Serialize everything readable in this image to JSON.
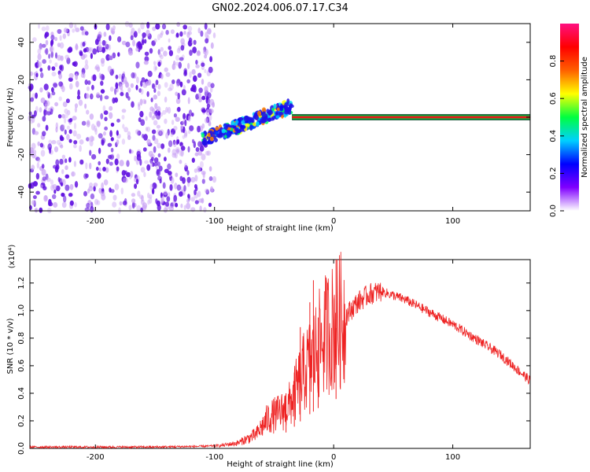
{
  "figure": {
    "title": "GN02.2024.006.07.17.C34"
  },
  "colors": {
    "snr_line": "#ee2222",
    "cluster": "#6010e0",
    "cluster_light": "#c8a0f4",
    "signal_band": "#e81818",
    "signal_band_edge": "#00cc44"
  },
  "chart_data": [
    {
      "type": "heatmap",
      "title": "GN02.2024.006.07.17.C34",
      "xlabel": "Height of straight line (km)",
      "ylabel": "Frequency (Hz)",
      "xlim": [
        -255,
        165
      ],
      "ylim": [
        -50,
        50
      ],
      "x_ticks": [
        -200,
        -100,
        0,
        100
      ],
      "y_ticks": [
        -40,
        -20,
        0,
        20,
        40
      ],
      "grid": false,
      "colorbar": {
        "label": "Normalized spectral amplitude",
        "range": [
          0.0,
          1.0
        ],
        "ticks": [
          "0.0",
          "0.2",
          "0.4",
          "0.6",
          "0.8"
        ],
        "colormap": [
          "#ffffff",
          "#8000ff",
          "#0000ff",
          "#00d0ff",
          "#00ff40",
          "#ffff00",
          "#ff6000",
          "#ff0000",
          "#ff1080"
        ]
      },
      "regions": [
        {
          "name": "noise",
          "x_range": [
            -255,
            -100
          ],
          "y_range": [
            -50,
            50
          ],
          "amplitude": 0.15
        },
        {
          "name": "chirp",
          "x_range": [
            -110,
            -35
          ],
          "freq_start": -12,
          "freq_end": 6,
          "amplitude": 0.4
        },
        {
          "name": "stable-tone",
          "x_range": [
            -35,
            165
          ],
          "frequency": 0,
          "amplitude": 1.0
        }
      ]
    },
    {
      "type": "line",
      "xlabel": "Height of straight line (km)",
      "ylabel": "SNR (10 * v/v)",
      "y_multiplier": "(x10⁴)",
      "xlim": [
        -255,
        165
      ],
      "ylim": [
        0,
        1.37
      ],
      "x_ticks": [
        -200,
        -100,
        0,
        100
      ],
      "y_ticks": [
        "0.0",
        "0.2",
        "0.4",
        "0.6",
        "0.8",
        "1.0",
        "1.2"
      ],
      "grid": false,
      "envelope": {
        "x": [
          -255,
          -200,
          -150,
          -110,
          -95,
          -80,
          -65,
          -55,
          -45,
          -38,
          -30,
          -25,
          -20,
          -15,
          -10,
          -5,
          0,
          10,
          20,
          30,
          40,
          60,
          80,
          100,
          120,
          140,
          165
        ],
        "y": [
          0.01,
          0.01,
          0.01,
          0.015,
          0.02,
          0.04,
          0.1,
          0.22,
          0.26,
          0.3,
          0.45,
          0.55,
          0.62,
          0.7,
          0.78,
          0.85,
          0.88,
          0.96,
          1.06,
          1.12,
          1.14,
          1.08,
          0.99,
          0.9,
          0.79,
          0.68,
          0.49
        ]
      },
      "spikes": [
        {
          "x": -40,
          "y": 0.4
        },
        {
          "x": -33,
          "y": 0.55
        },
        {
          "x": -28,
          "y": 0.88
        },
        {
          "x": -20,
          "y": 1.06
        },
        {
          "x": -17,
          "y": 1.22
        },
        {
          "x": -13,
          "y": 0.95
        },
        {
          "x": 2,
          "y": 1.37
        }
      ]
    }
  ]
}
